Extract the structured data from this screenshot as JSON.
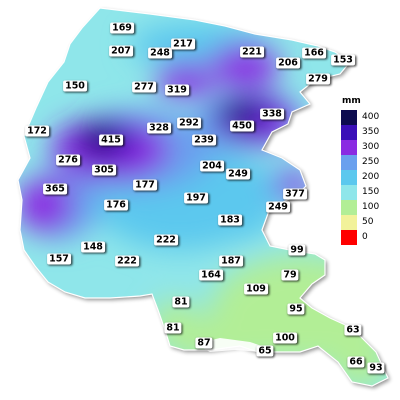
{
  "legend": {
    "unit": "mm",
    "classes": [
      {
        "value": "400",
        "color": "#0c0b4f"
      },
      {
        "value": "350",
        "color": "#3a0fb8"
      },
      {
        "value": "300",
        "color": "#8a2be2"
      },
      {
        "value": "250",
        "color": "#6aa0ee"
      },
      {
        "value": "200",
        "color": "#5cc8ee"
      },
      {
        "value": "150",
        "color": "#8fe6ea"
      },
      {
        "value": "100",
        "color": "#b2ee96"
      },
      {
        "value": "50",
        "color": "#f2f29a"
      },
      {
        "value": "0",
        "color": "#ff0000"
      }
    ]
  },
  "stations": [
    {
      "value": "169"
    },
    {
      "value": "207"
    },
    {
      "value": "248"
    },
    {
      "value": "217"
    },
    {
      "value": "221"
    },
    {
      "value": "166"
    },
    {
      "value": "153"
    },
    {
      "value": "206"
    },
    {
      "value": "279"
    },
    {
      "value": "150"
    },
    {
      "value": "277"
    },
    {
      "value": "319"
    },
    {
      "value": "338"
    },
    {
      "value": "172"
    },
    {
      "value": "292"
    },
    {
      "value": "450"
    },
    {
      "value": "415"
    },
    {
      "value": "328"
    },
    {
      "value": "239"
    },
    {
      "value": "276"
    },
    {
      "value": "305"
    },
    {
      "value": "204"
    },
    {
      "value": "249"
    },
    {
      "value": "177"
    },
    {
      "value": "377"
    },
    {
      "value": "365"
    },
    {
      "value": "197"
    },
    {
      "value": "249"
    },
    {
      "value": "176"
    },
    {
      "value": "183"
    },
    {
      "value": "222"
    },
    {
      "value": "148"
    },
    {
      "value": "99"
    },
    {
      "value": "157"
    },
    {
      "value": "222"
    },
    {
      "value": "187"
    },
    {
      "value": "164"
    },
    {
      "value": "79"
    },
    {
      "value": "109"
    },
    {
      "value": "81"
    },
    {
      "value": "95"
    },
    {
      "value": "81"
    },
    {
      "value": "63"
    },
    {
      "value": "100"
    },
    {
      "value": "87"
    },
    {
      "value": "65"
    },
    {
      "value": "66"
    },
    {
      "value": "93"
    }
  ]
}
